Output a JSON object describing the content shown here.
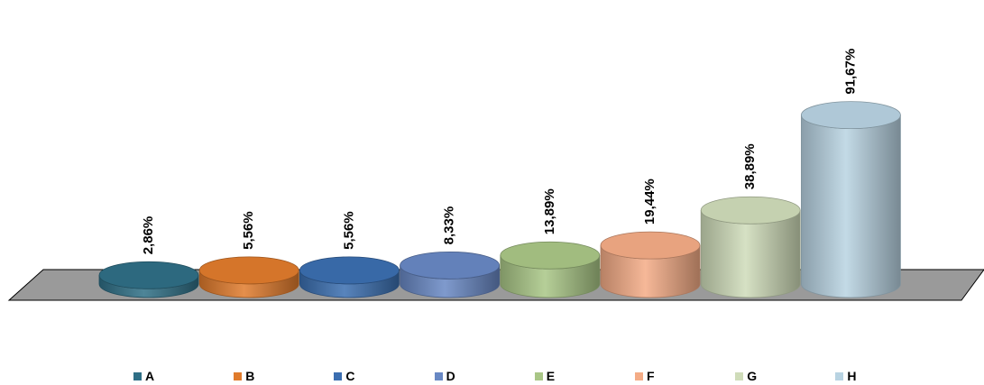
{
  "chart_data": {
    "type": "bar",
    "style": "3d-cylinder",
    "categories": [
      "A",
      "B",
      "C",
      "D",
      "E",
      "F",
      "G",
      "H"
    ],
    "values": [
      2.86,
      5.56,
      5.56,
      8.33,
      13.89,
      19.44,
      38.89,
      91.67
    ],
    "data_labels": [
      "2,86%",
      "5,56%",
      "5,56%",
      "8,33%",
      "13,89%",
      "19,44%",
      "38,89%",
      "91,67%"
    ],
    "colors": [
      "#2f6f86",
      "#e07b2c",
      "#3b6eb0",
      "#6888c4",
      "#a9c686",
      "#f4ac86",
      "#cfdcb9",
      "#b8d3e2"
    ],
    "ylim": [
      0,
      100
    ],
    "grid": false,
    "legend": "bottom",
    "data_label_rotation": "vertical"
  }
}
